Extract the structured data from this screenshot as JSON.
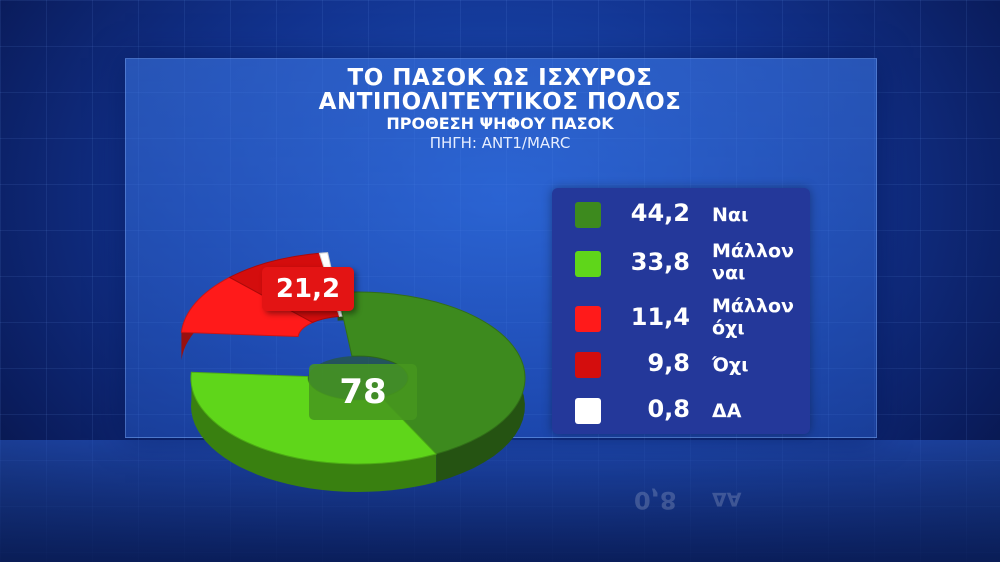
{
  "titles": {
    "line1": "ΤΟ ΠΑΣΟΚ ΩΣ ΙΣΧΥΡΟΣ",
    "line2": "ΑΝΤΙΠΟΛΙΤΕΥΤΙΚΟΣ ΠΟΛΟΣ",
    "line3": "ΠΡΟΘΕΣΗ ΨΗΦΟΥ ΠΑΣΟΚ",
    "source": "ΠΗΓΗ: ΑΝΤ1/MARC"
  },
  "callouts": {
    "positive": "78",
    "negative": "21,2"
  },
  "colors": {
    "dark_green": "#3d8a1e",
    "light_green": "#5fd61a",
    "bright_red": "#ff1a1a",
    "dark_red": "#d40d0d",
    "white": "#ffffff"
  },
  "chart_data": {
    "type": "pie",
    "title": "ΤΟ ΠΑΣΟΚ ΩΣ ΙΣΧΥΡΟΣ ΑΝΤΙΠΟΛΙΤΕΥΤΙΚΟΣ ΠΟΛΟΣ",
    "subtitle": "ΠΡΟΘΕΣΗ ΨΗΦΟΥ ΠΑΣΟΚ",
    "legend_position": "right",
    "slices": [
      {
        "label_line1": "Ναι",
        "label_line2": "",
        "value": 44.2,
        "value_text": "44,2",
        "color": "#3d8a1e"
      },
      {
        "label_line1": "Μάλλον",
        "label_line2": "ναι",
        "value": 33.8,
        "value_text": "33,8",
        "color": "#5fd61a"
      },
      {
        "label_line1": "Μάλλον",
        "label_line2": "όχι",
        "value": 11.4,
        "value_text": "11,4",
        "color": "#ff1a1a"
      },
      {
        "label_line1": "Όχι",
        "label_line2": "",
        "value": 9.8,
        "value_text": "9,8",
        "color": "#d40d0d"
      },
      {
        "label_line1": "ΔΑ",
        "label_line2": "",
        "value": 0.8,
        "value_text": "0,8",
        "color": "#ffffff"
      }
    ],
    "groups": [
      {
        "value": 78,
        "value_text": "78"
      },
      {
        "value": 21.2,
        "value_text": "21,2"
      }
    ]
  }
}
